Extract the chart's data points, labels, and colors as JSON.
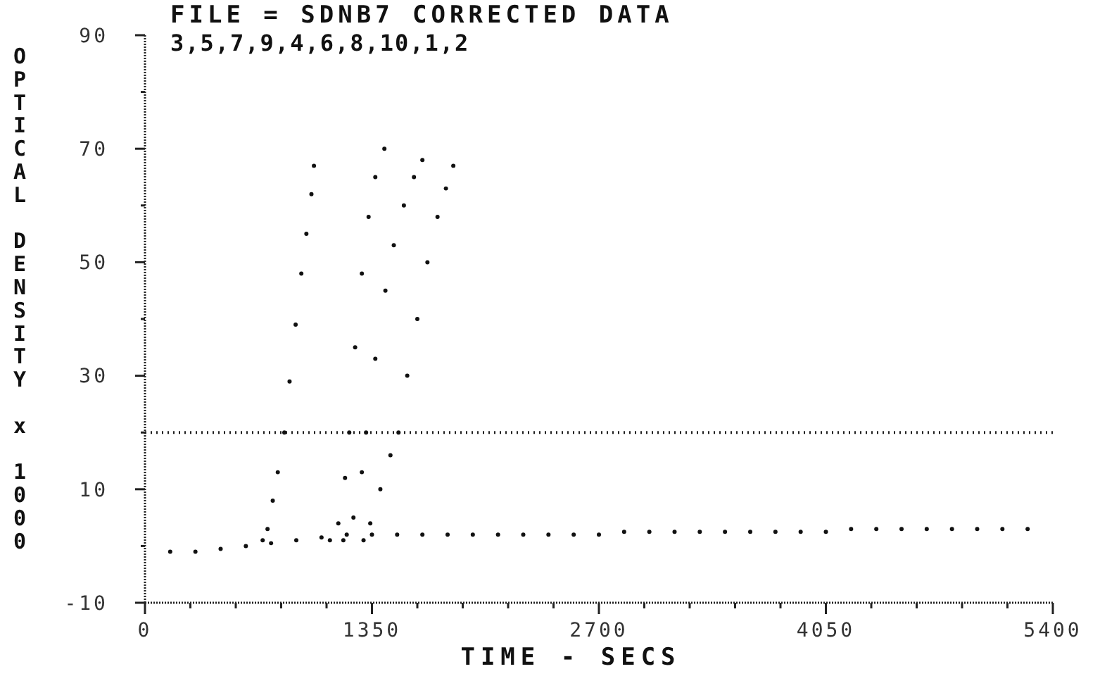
{
  "chart_data": {
    "type": "scatter",
    "title": "FILE = SDNB7  CORRECTED DATA",
    "subtitle": "3,5,7,9,4,6,8,10,1,2",
    "xlabel": "TIME - SECS",
    "ylabel": "OPTICAL DENSITY x 1000",
    "xlim": [
      0,
      5400
    ],
    "ylim": [
      -10,
      90
    ],
    "xticks": [
      0,
      {
        "value": 270,
        "label": null
      },
      {
        "value": 540,
        "label": null
      },
      {
        "value": 810,
        "label": null
      },
      {
        "value": 1080,
        "label": null
      },
      1350,
      {
        "value": 1620,
        "label": null
      },
      {
        "value": 1890,
        "label": null
      },
      {
        "value": 2160,
        "label": null
      },
      {
        "value": 2430,
        "label": null
      },
      2700,
      {
        "value": 2970,
        "label": null
      },
      {
        "value": 3240,
        "label": null
      },
      {
        "value": 3510,
        "label": null
      },
      {
        "value": 3780,
        "label": null
      },
      4050,
      {
        "value": 4320,
        "label": null
      },
      {
        "value": 4590,
        "label": null
      },
      {
        "value": 4860,
        "label": null
      },
      {
        "value": 5130,
        "label": null
      },
      5400
    ],
    "yticks": [
      -10,
      {
        "value": 0,
        "label": null
      },
      10,
      {
        "value": 20,
        "label": null
      },
      30,
      {
        "value": 40,
        "label": null
      },
      50,
      {
        "value": 60,
        "label": null
      },
      70,
      {
        "value": 80,
        "label": null
      },
      90
    ],
    "grid": false,
    "marker": "circle",
    "ref_lines": [
      {
        "axis": "y",
        "value": 20,
        "line_style": "dotted",
        "color": "#222222"
      }
    ],
    "series": [
      {
        "color": "#111111",
        "x": [
          700,
          729,
          760,
          790,
          829,
          860,
          896,
          930,
          960,
          990,
          1005
        ],
        "values": [
          1,
          3,
          8,
          13,
          20,
          29,
          39,
          48,
          55,
          62,
          67
        ]
      },
      {
        "color": "#111111",
        "x": [
          1100,
          1150,
          1190,
          1215,
          1250,
          1290,
          1330,
          1370,
          1424
        ],
        "values": [
          1,
          4,
          12,
          20,
          35,
          48,
          58,
          65,
          70
        ]
      },
      {
        "color": "#111111",
        "x": [
          1180,
          1240,
          1290,
          1315,
          1370,
          1430,
          1480,
          1540,
          1600,
          1650
        ],
        "values": [
          1,
          5,
          13,
          20,
          33,
          45,
          53,
          60,
          65,
          68
        ]
      },
      {
        "color": "#111111",
        "x": [
          1300,
          1340,
          1400,
          1460,
          1508,
          1560,
          1620,
          1680,
          1740,
          1790,
          1834
        ],
        "values": [
          1,
          4,
          10,
          16,
          20,
          30,
          40,
          50,
          58,
          63,
          67
        ]
      },
      {
        "color": "#111111",
        "x": [
          150,
          300,
          450,
          600,
          750,
          900,
          1050,
          1200,
          1350,
          1500,
          1650,
          1800,
          1950,
          2100,
          2250,
          2400,
          2550,
          2700,
          2850,
          3000,
          3150,
          3300,
          3450,
          3600,
          3750,
          3900,
          4050,
          4200,
          4350,
          4500,
          4650,
          4800,
          4950,
          5100,
          5250
        ],
        "values": [
          -1,
          -1,
          -0.5,
          0,
          0.5,
          1,
          1.5,
          2,
          2,
          2,
          2,
          2,
          2,
          2,
          2,
          2,
          2,
          2,
          2.5,
          2.5,
          2.5,
          2.5,
          2.5,
          2.5,
          2.5,
          2.5,
          2.5,
          3,
          3,
          3,
          3,
          3,
          3,
          3,
          3
        ]
      }
    ]
  }
}
